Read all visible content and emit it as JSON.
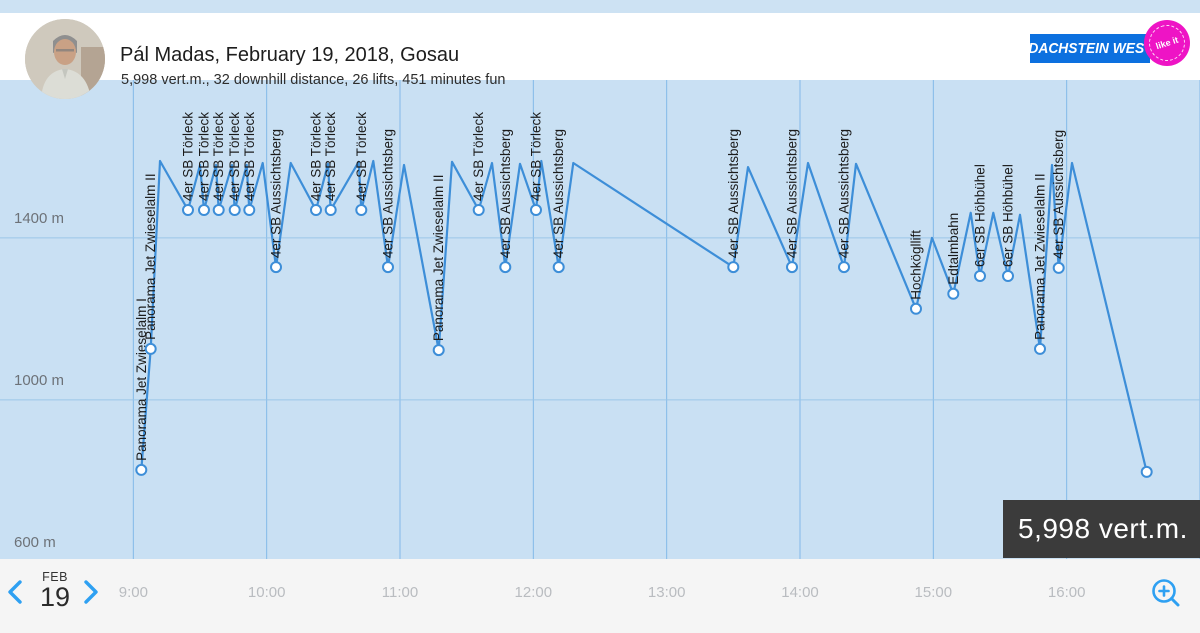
{
  "header": {
    "title": "Pál Madas, February 19, 2018, Gosau",
    "subtitle": "5,998 vert.m., 32 downhill distance, 26 lifts, 451 minutes fun",
    "logo": {
      "name": "DACHSTEIN WEST",
      "badge": "like it"
    }
  },
  "overlay": {
    "total": "5,998 vert.m."
  },
  "footer": {
    "month": "FEB",
    "day": "19"
  },
  "colors": {
    "line": "#3d8ed8",
    "marker_fill": "#ffffff",
    "grid_vertical": "#82b9e8",
    "grid_horizontal": "#9ac5e8",
    "chart_background": "#c9e0f3",
    "accent_blue": "#2ea0f2",
    "logo_blue": "#0c70df",
    "badge_pink": "#ee14c5",
    "overlay_background": "#3b3b3b",
    "label_text": "#1b1b1b",
    "axis_text": "#6d7278",
    "time_text": "#b9bcc0"
  },
  "chart_data": {
    "type": "line",
    "x_range_hours": [
      8,
      17
    ],
    "y_range_m": [
      607,
      1790
    ],
    "grid_hours": [
      9,
      10,
      11,
      12,
      13,
      14,
      15,
      16,
      17
    ],
    "x_axis": {
      "tick_hours": [
        9,
        10,
        11,
        12,
        13,
        14,
        15,
        16
      ],
      "tick_labels": [
        "9:00",
        "10:00",
        "11:00",
        "12:00",
        "13:00",
        "14:00",
        "15:00",
        "16:00"
      ]
    },
    "y_axis": {
      "unit": "m",
      "ticks": [
        {
          "label": "1400 m",
          "alt": 1400
        },
        {
          "label": "1000 m",
          "alt": 1000
        },
        {
          "label": "600 m",
          "alt": 600
        }
      ]
    },
    "points": [
      {
        "t": 9.06,
        "alt": 827,
        "kind": "station",
        "label": "Panorama Jet Zwieselalm I"
      },
      {
        "t": 9.13,
        "alt": 1126,
        "kind": "station",
        "label": "Panorama Jet Zwieselalm II"
      },
      {
        "t": 9.2,
        "alt": 1590,
        "kind": "peak"
      },
      {
        "t": 9.41,
        "alt": 1469,
        "kind": "station",
        "label": "4er SB Törleck"
      },
      {
        "t": 9.5,
        "alt": 1580,
        "kind": "peak"
      },
      {
        "t": 9.53,
        "alt": 1469,
        "kind": "station",
        "label": "4er SB Törleck"
      },
      {
        "t": 9.62,
        "alt": 1580,
        "kind": "peak"
      },
      {
        "t": 9.64,
        "alt": 1469,
        "kind": "station",
        "label": "4er SB Törleck"
      },
      {
        "t": 9.74,
        "alt": 1580,
        "kind": "peak"
      },
      {
        "t": 9.76,
        "alt": 1469,
        "kind": "station",
        "label": "4er SB Törleck"
      },
      {
        "t": 9.85,
        "alt": 1580,
        "kind": "peak"
      },
      {
        "t": 9.87,
        "alt": 1469,
        "kind": "station",
        "label": "4er SB Törleck"
      },
      {
        "t": 9.97,
        "alt": 1585,
        "kind": "peak"
      },
      {
        "t": 10.07,
        "alt": 1328,
        "kind": "station",
        "label": "4er SB Aussichtsberg"
      },
      {
        "t": 10.18,
        "alt": 1585,
        "kind": "peak"
      },
      {
        "t": 10.37,
        "alt": 1469,
        "kind": "station",
        "label": "4er SB Törleck"
      },
      {
        "t": 10.46,
        "alt": 1583,
        "kind": "peak"
      },
      {
        "t": 10.48,
        "alt": 1469,
        "kind": "station",
        "label": "4er SB Törleck"
      },
      {
        "t": 10.69,
        "alt": 1588,
        "kind": "peak"
      },
      {
        "t": 10.71,
        "alt": 1469,
        "kind": "station",
        "label": "4er SB Törleck"
      },
      {
        "t": 10.8,
        "alt": 1590,
        "kind": "peak"
      },
      {
        "t": 10.91,
        "alt": 1328,
        "kind": "station",
        "label": "4er SB Aussichtsberg"
      },
      {
        "t": 11.03,
        "alt": 1580,
        "kind": "peak"
      },
      {
        "t": 11.29,
        "alt": 1123,
        "kind": "station",
        "label": "Panorama Jet Zwieselalm II"
      },
      {
        "t": 11.39,
        "alt": 1588,
        "kind": "peak"
      },
      {
        "t": 11.59,
        "alt": 1469,
        "kind": "station",
        "label": "4er SB Törleck"
      },
      {
        "t": 11.69,
        "alt": 1585,
        "kind": "peak"
      },
      {
        "t": 11.79,
        "alt": 1328,
        "kind": "station",
        "label": "4er SB Aussichtsberg"
      },
      {
        "t": 11.9,
        "alt": 1583,
        "kind": "peak"
      },
      {
        "t": 12.02,
        "alt": 1469,
        "kind": "station",
        "label": "4er SB Törleck"
      },
      {
        "t": 12.06,
        "alt": 1590,
        "kind": "peak"
      },
      {
        "t": 12.19,
        "alt": 1328,
        "kind": "station",
        "label": "4er SB Aussichtsberg"
      },
      {
        "t": 12.3,
        "alt": 1585,
        "kind": "peak"
      },
      {
        "t": 13.5,
        "alt": 1328,
        "kind": "station",
        "label": "4er SB Aussichtsberg"
      },
      {
        "t": 13.61,
        "alt": 1575,
        "kind": "peak"
      },
      {
        "t": 13.94,
        "alt": 1328,
        "kind": "station",
        "label": "4er SB Aussichtsberg"
      },
      {
        "t": 14.06,
        "alt": 1585,
        "kind": "peak"
      },
      {
        "t": 14.33,
        "alt": 1328,
        "kind": "station",
        "label": "4er SB Aussichtsberg"
      },
      {
        "t": 14.42,
        "alt": 1583,
        "kind": "peak"
      },
      {
        "t": 14.87,
        "alt": 1225,
        "kind": "station",
        "label": "Hochkögllift"
      },
      {
        "t": 14.99,
        "alt": 1400,
        "kind": "peak"
      },
      {
        "t": 15.15,
        "alt": 1262,
        "kind": "station",
        "label": "Edtalmbahn"
      },
      {
        "t": 15.28,
        "alt": 1462,
        "kind": "peak"
      },
      {
        "t": 15.35,
        "alt": 1306,
        "kind": "station",
        "label": "6er SB Höhbühel"
      },
      {
        "t": 15.45,
        "alt": 1462,
        "kind": "peak"
      },
      {
        "t": 15.56,
        "alt": 1306,
        "kind": "station",
        "label": "6er SB Höhbühel"
      },
      {
        "t": 15.65,
        "alt": 1457,
        "kind": "peak"
      },
      {
        "t": 15.8,
        "alt": 1126,
        "kind": "station",
        "label": "Panorama Jet Zwieselalm II"
      },
      {
        "t": 15.89,
        "alt": 1580,
        "kind": "peak"
      },
      {
        "t": 15.94,
        "alt": 1326,
        "kind": "station",
        "label": "4er SB Aussichtsberg"
      },
      {
        "t": 16.04,
        "alt": 1585,
        "kind": "peak"
      },
      {
        "t": 16.6,
        "alt": 822,
        "kind": "end"
      }
    ]
  }
}
